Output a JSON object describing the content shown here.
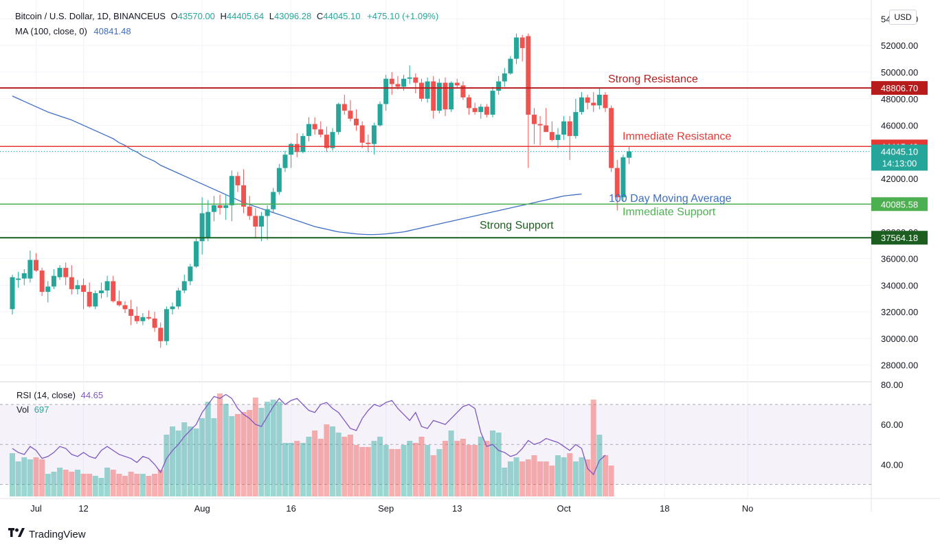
{
  "header": {
    "symbol": "Bitcoin / U.S. Dollar, 1D, BINANCEUS",
    "o_label": "O",
    "o_value": "43570.00",
    "h_label": "H",
    "h_value": "44405.64",
    "l_label": "L",
    "l_value": "43096.28",
    "c_label": "C",
    "c_value": "44045.10",
    "change": "+475.10 (+1.09%)",
    "ma_label": "MA (100, close, 0)",
    "ma_value": "40841.48"
  },
  "currency_button": "USD",
  "brand": "TradingView",
  "colors": {
    "up": "#26a69a",
    "down": "#ef5350",
    "ma_line": "#3d6ec4",
    "strong_resistance": "#b71c1c",
    "immediate_resistance": "#e53935",
    "immediate_support": "#4caf50",
    "strong_support": "#1b5e20",
    "rsi_line": "#7e57c2"
  },
  "chart_data": {
    "type": "candlestick",
    "y_axis_ticks": [
      "28000.00",
      "30000.00",
      "32000.00",
      "34000.00",
      "36000.00",
      "38000.00",
      "40000.00",
      "42000.00",
      "44000.00",
      "46000.00",
      "48000.00",
      "50000.00",
      "52000.00",
      "54000.00"
    ],
    "ylim": [
      26800,
      55000
    ],
    "x_tick_labels": [
      {
        "label": "Jul",
        "day": 4
      },
      {
        "label": "12",
        "day": 12
      },
      {
        "label": "Aug",
        "day": 32
      },
      {
        "label": "16",
        "day": 47
      },
      {
        "label": "Sep",
        "day": 63
      },
      {
        "label": "13",
        "day": 75
      },
      {
        "label": "Oct",
        "day": 93
      },
      {
        "label": "18",
        "day": 110
      },
      {
        "label": "No",
        "day": 124
      }
    ],
    "candles": [
      {
        "o": 32200,
        "h": 34800,
        "l": 31800,
        "c": 34600
      },
      {
        "o": 34400,
        "h": 35000,
        "l": 33800,
        "c": 34500
      },
      {
        "o": 34500,
        "h": 35200,
        "l": 34000,
        "c": 34900
      },
      {
        "o": 34500,
        "h": 36600,
        "l": 34200,
        "c": 35900
      },
      {
        "o": 35900,
        "h": 36400,
        "l": 35000,
        "c": 35100
      },
      {
        "o": 35100,
        "h": 35300,
        "l": 33200,
        "c": 33500
      },
      {
        "o": 33500,
        "h": 34300,
        "l": 32700,
        "c": 33900
      },
      {
        "o": 33900,
        "h": 35200,
        "l": 33700,
        "c": 34700
      },
      {
        "o": 34600,
        "h": 35500,
        "l": 34400,
        "c": 35300
      },
      {
        "o": 35300,
        "h": 35700,
        "l": 34000,
        "c": 34600
      },
      {
        "o": 34600,
        "h": 35500,
        "l": 33300,
        "c": 33700
      },
      {
        "o": 33700,
        "h": 34400,
        "l": 33300,
        "c": 34000
      },
      {
        "o": 34000,
        "h": 34500,
        "l": 32200,
        "c": 33500
      },
      {
        "o": 33500,
        "h": 34200,
        "l": 32300,
        "c": 32400
      },
      {
        "o": 32400,
        "h": 33600,
        "l": 32200,
        "c": 33400
      },
      {
        "o": 33400,
        "h": 34200,
        "l": 33000,
        "c": 33600
      },
      {
        "o": 33600,
        "h": 34700,
        "l": 33100,
        "c": 34300
      },
      {
        "o": 34300,
        "h": 34700,
        "l": 32700,
        "c": 32800
      },
      {
        "o": 32800,
        "h": 33600,
        "l": 32400,
        "c": 32500
      },
      {
        "o": 32500,
        "h": 32800,
        "l": 31900,
        "c": 32200
      },
      {
        "o": 32200,
        "h": 32900,
        "l": 31000,
        "c": 31700
      },
      {
        "o": 31700,
        "h": 32400,
        "l": 31100,
        "c": 31300
      },
      {
        "o": 31300,
        "h": 31900,
        "l": 31000,
        "c": 31600
      },
      {
        "o": 31600,
        "h": 32100,
        "l": 31400,
        "c": 31500
      },
      {
        "o": 31500,
        "h": 32000,
        "l": 30500,
        "c": 30800
      },
      {
        "o": 30800,
        "h": 31200,
        "l": 29300,
        "c": 29800
      },
      {
        "o": 29800,
        "h": 32400,
        "l": 29500,
        "c": 32200
      },
      {
        "o": 32200,
        "h": 32700,
        "l": 31800,
        "c": 32400
      },
      {
        "o": 32400,
        "h": 33800,
        "l": 32200,
        "c": 33600
      },
      {
        "o": 33600,
        "h": 34800,
        "l": 33400,
        "c": 34300
      },
      {
        "o": 34300,
        "h": 35600,
        "l": 34000,
        "c": 35400
      },
      {
        "o": 35400,
        "h": 37500,
        "l": 35300,
        "c": 37300
      },
      {
        "o": 37300,
        "h": 40600,
        "l": 36300,
        "c": 39400
      },
      {
        "o": 37600,
        "h": 40400,
        "l": 37300,
        "c": 39500
      },
      {
        "o": 39500,
        "h": 40700,
        "l": 38800,
        "c": 40000
      },
      {
        "o": 40000,
        "h": 40800,
        "l": 39300,
        "c": 39800
      },
      {
        "o": 39800,
        "h": 40800,
        "l": 38900,
        "c": 40000
      },
      {
        "o": 40000,
        "h": 42600,
        "l": 38800,
        "c": 42200
      },
      {
        "o": 42200,
        "h": 42500,
        "l": 41000,
        "c": 41500
      },
      {
        "o": 41500,
        "h": 42700,
        "l": 39400,
        "c": 39900
      },
      {
        "o": 39900,
        "h": 40700,
        "l": 38900,
        "c": 39200
      },
      {
        "o": 39200,
        "h": 39800,
        "l": 37500,
        "c": 38400
      },
      {
        "o": 38400,
        "h": 39500,
        "l": 37300,
        "c": 39200
      },
      {
        "o": 39200,
        "h": 40000,
        "l": 37400,
        "c": 39700
      },
      {
        "o": 39700,
        "h": 41300,
        "l": 39400,
        "c": 41000
      },
      {
        "o": 41000,
        "h": 43100,
        "l": 40800,
        "c": 42800
      },
      {
        "o": 42800,
        "h": 44100,
        "l": 42500,
        "c": 43800
      },
      {
        "o": 43800,
        "h": 44700,
        "l": 42800,
        "c": 44600
      },
      {
        "o": 44600,
        "h": 45400,
        "l": 43600,
        "c": 44000
      },
      {
        "o": 44000,
        "h": 45400,
        "l": 43900,
        "c": 45200
      },
      {
        "o": 45200,
        "h": 46600,
        "l": 44800,
        "c": 46100
      },
      {
        "o": 46100,
        "h": 46600,
        "l": 45300,
        "c": 45700
      },
      {
        "o": 45700,
        "h": 46300,
        "l": 45100,
        "c": 45300
      },
      {
        "o": 45300,
        "h": 45900,
        "l": 44000,
        "c": 44300
      },
      {
        "o": 44300,
        "h": 45800,
        "l": 44100,
        "c": 45500
      },
      {
        "o": 45500,
        "h": 47700,
        "l": 45300,
        "c": 47600
      },
      {
        "o": 47600,
        "h": 48300,
        "l": 46800,
        "c": 47100
      },
      {
        "o": 47100,
        "h": 47900,
        "l": 46300,
        "c": 46500
      },
      {
        "o": 46500,
        "h": 47200,
        "l": 45600,
        "c": 46000
      },
      {
        "o": 46000,
        "h": 46300,
        "l": 44300,
        "c": 44700
      },
      {
        "o": 44700,
        "h": 45300,
        "l": 44000,
        "c": 44600
      },
      {
        "o": 44600,
        "h": 46200,
        "l": 43800,
        "c": 46000
      },
      {
        "o": 46000,
        "h": 47800,
        "l": 45900,
        "c": 47600
      },
      {
        "o": 47600,
        "h": 49800,
        "l": 47100,
        "c": 49500
      },
      {
        "o": 49500,
        "h": 50000,
        "l": 48300,
        "c": 49100
      },
      {
        "o": 49100,
        "h": 49700,
        "l": 48700,
        "c": 48900
      },
      {
        "o": 48900,
        "h": 49800,
        "l": 48600,
        "c": 49500
      },
      {
        "o": 49500,
        "h": 50500,
        "l": 49100,
        "c": 49600
      },
      {
        "o": 49600,
        "h": 49900,
        "l": 48400,
        "c": 49200
      },
      {
        "o": 49200,
        "h": 49500,
        "l": 47800,
        "c": 48000
      },
      {
        "o": 48000,
        "h": 49600,
        "l": 47700,
        "c": 49300
      },
      {
        "o": 49300,
        "h": 49700,
        "l": 46500,
        "c": 47100
      },
      {
        "o": 47100,
        "h": 49500,
        "l": 46900,
        "c": 49200
      },
      {
        "o": 49200,
        "h": 49600,
        "l": 46700,
        "c": 47200
      },
      {
        "o": 47200,
        "h": 49300,
        "l": 47000,
        "c": 49200
      },
      {
        "o": 49200,
        "h": 49500,
        "l": 48800,
        "c": 49000
      },
      {
        "o": 49000,
        "h": 49300,
        "l": 47900,
        "c": 48100
      },
      {
        "o": 48100,
        "h": 48300,
        "l": 46800,
        "c": 47300
      },
      {
        "o": 47300,
        "h": 47700,
        "l": 46800,
        "c": 47000
      },
      {
        "o": 47000,
        "h": 47600,
        "l": 46500,
        "c": 47400
      },
      {
        "o": 47400,
        "h": 47600,
        "l": 46600,
        "c": 46800
      },
      {
        "o": 46800,
        "h": 48900,
        "l": 46600,
        "c": 48600
      },
      {
        "o": 48600,
        "h": 49700,
        "l": 48300,
        "c": 49300
      },
      {
        "o": 49300,
        "h": 50300,
        "l": 48900,
        "c": 49900
      },
      {
        "o": 49900,
        "h": 51200,
        "l": 49800,
        "c": 51000
      },
      {
        "o": 51000,
        "h": 52900,
        "l": 50600,
        "c": 52600
      },
      {
        "o": 52600,
        "h": 52800,
        "l": 50800,
        "c": 51800
      },
      {
        "o": 52700,
        "h": 52900,
        "l": 42800,
        "c": 46800
      },
      {
        "o": 46800,
        "h": 47300,
        "l": 44600,
        "c": 46100
      },
      {
        "o": 46100,
        "h": 46700,
        "l": 44500,
        "c": 46000
      },
      {
        "o": 46000,
        "h": 47300,
        "l": 45600,
        "c": 45500
      },
      {
        "o": 45500,
        "h": 46300,
        "l": 44800,
        "c": 44900
      },
      {
        "o": 44900,
        "h": 45800,
        "l": 44300,
        "c": 45300
      },
      {
        "o": 45300,
        "h": 46700,
        "l": 44900,
        "c": 46300
      },
      {
        "o": 46300,
        "h": 46700,
        "l": 43400,
        "c": 45200
      },
      {
        "o": 45200,
        "h": 48000,
        "l": 45000,
        "c": 47000
      },
      {
        "o": 47000,
        "h": 48500,
        "l": 46800,
        "c": 48100
      },
      {
        "o": 48100,
        "h": 48300,
        "l": 47200,
        "c": 47700
      },
      {
        "o": 47700,
        "h": 48500,
        "l": 47000,
        "c": 47500
      },
      {
        "o": 47500,
        "h": 48800,
        "l": 47200,
        "c": 48300
      },
      {
        "o": 48300,
        "h": 48500,
        "l": 47000,
        "c": 47300
      },
      {
        "o": 47300,
        "h": 47500,
        "l": 42500,
        "c": 42800
      },
      {
        "o": 42800,
        "h": 43400,
        "l": 39600,
        "c": 40600
      },
      {
        "o": 40600,
        "h": 43800,
        "l": 40300,
        "c": 43600
      },
      {
        "o": 43570,
        "h": 44405.64,
        "l": 43096.28,
        "c": 44045.1
      }
    ],
    "ma100": [
      48200,
      48000,
      47800,
      47600,
      47400,
      47200,
      47000,
      46850,
      46700,
      46550,
      46400,
      46200,
      46000,
      45800,
      45600,
      45400,
      45200,
      45000,
      44700,
      44500,
      44200,
      44000,
      43700,
      43500,
      43300,
      43000,
      42800,
      42600,
      42400,
      42200,
      42000,
      41800,
      41600,
      41400,
      41200,
      41000,
      40800,
      40600,
      40400,
      40200,
      40050,
      39900,
      39750,
      39600,
      39450,
      39300,
      39150,
      39000,
      38850,
      38700,
      38550,
      38400,
      38300,
      38200,
      38100,
      38000,
      37950,
      37900,
      37850,
      37820,
      37800,
      37800,
      37820,
      37850,
      37900,
      37950,
      38000,
      38100,
      38200,
      38300,
      38400,
      38500,
      38600,
      38700,
      38800,
      38900,
      39000,
      39100,
      39200,
      39300,
      39400,
      39500,
      39600,
      39700,
      39800,
      39900,
      40000,
      40100,
      40200,
      40300,
      40400,
      40500,
      40600,
      40700,
      40750,
      40800,
      40841.48
    ],
    "rsi": [
      48,
      46,
      45,
      49,
      47,
      43,
      44,
      46,
      49,
      48,
      45,
      44,
      46,
      44,
      43,
      47,
      49,
      47,
      45,
      44,
      43,
      41,
      44,
      43,
      40,
      36,
      43,
      47,
      50,
      54,
      57,
      60,
      66,
      70,
      74,
      73,
      75,
      73,
      68,
      65,
      63,
      60,
      59,
      64,
      69,
      73,
      70,
      72,
      73,
      70,
      67,
      66,
      70,
      71,
      68,
      66,
      62,
      58,
      57,
      63,
      67,
      70,
      69,
      71,
      72,
      68,
      65,
      62,
      66,
      59,
      58,
      62,
      61,
      60,
      63,
      66,
      69,
      70,
      68,
      56,
      49,
      50,
      47,
      46,
      44,
      45,
      48,
      52,
      50,
      51,
      53,
      52,
      51,
      49,
      47,
      50,
      48,
      38,
      35,
      42,
      44.65
    ],
    "volume": [
      21,
      17,
      19,
      18,
      19,
      18,
      11,
      12,
      14,
      13,
      12,
      13,
      11,
      11,
      10,
      9,
      14,
      13,
      11,
      10,
      12,
      11,
      11,
      10,
      11,
      13,
      30,
      34,
      32,
      36,
      34,
      33,
      38,
      46,
      38,
      50,
      45,
      39,
      40,
      41,
      42,
      48,
      43,
      46,
      47,
      46,
      26,
      26,
      27,
      26,
      29,
      32,
      28,
      35,
      34,
      31,
      29,
      30,
      25,
      24,
      24,
      27,
      29,
      25,
      23,
      23,
      25,
      27,
      26,
      29,
      25,
      20,
      23,
      27,
      32,
      27,
      28,
      25,
      25,
      29,
      27,
      32,
      31,
      14,
      17,
      19,
      17,
      18,
      20,
      17,
      17,
      15,
      20,
      19,
      21,
      17,
      19,
      18,
      47,
      30,
      20,
      15
    ],
    "levels": [
      {
        "label": "Strong Resistance",
        "value": "48806.70",
        "y": 48806.7
      },
      {
        "label": "Immediate Resistance",
        "value": "44415.40",
        "y": 44415.4
      },
      {
        "label": "Immediate Support",
        "value": "40085.58",
        "y": 40085.58
      },
      {
        "label": "Strong Support",
        "value": "37564.18",
        "y": 37564.18
      }
    ],
    "last_price_label": "44045.10",
    "last_price_y": 44045.1,
    "countdown": "14:13:00",
    "ma_annotation": "100 Day Moving Average",
    "rsi_panel": {
      "label": "RSI (14, close)",
      "value": "44.65",
      "vol_label": "Vol",
      "vol_value": "697",
      "ticks": [
        "40.00",
        "60.00",
        "80.00"
      ],
      "band_upper": 70,
      "band_mid": 50,
      "band_lower": 30,
      "ylim": [
        24,
        81
      ]
    }
  }
}
